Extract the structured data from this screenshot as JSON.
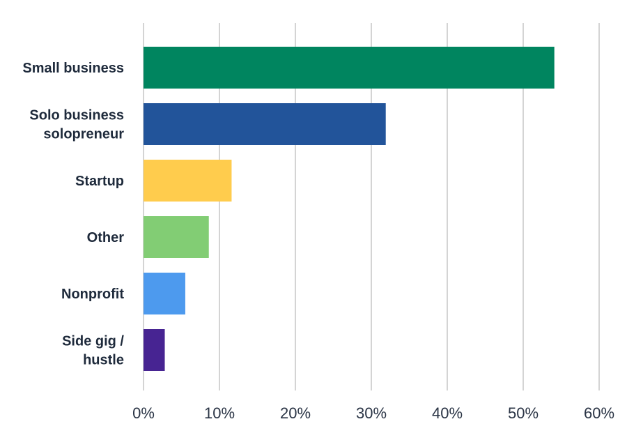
{
  "chart_data": {
    "type": "bar",
    "orientation": "horizontal",
    "title": "",
    "xlabel": "",
    "ylabel": "",
    "xlim": [
      0,
      60
    ],
    "x_ticks": [
      0,
      10,
      20,
      30,
      40,
      50,
      60
    ],
    "x_tick_labels": [
      "0%",
      "10%",
      "20%",
      "30%",
      "40%",
      "50%",
      "60%"
    ],
    "grid": true,
    "legend": "none",
    "categories": [
      [
        "Small business"
      ],
      [
        "Solo business",
        "solopreneur"
      ],
      [
        "Startup"
      ],
      [
        "Other"
      ],
      [
        "Nonprofit"
      ],
      [
        "Side gig /",
        "hustle"
      ]
    ],
    "values": [
      54.1,
      31.9,
      11.6,
      8.6,
      5.5,
      2.8
    ],
    "colors": [
      "#00855f",
      "#22549a",
      "#ffcc4d",
      "#82cd74",
      "#4d9aee",
      "#472492"
    ]
  }
}
